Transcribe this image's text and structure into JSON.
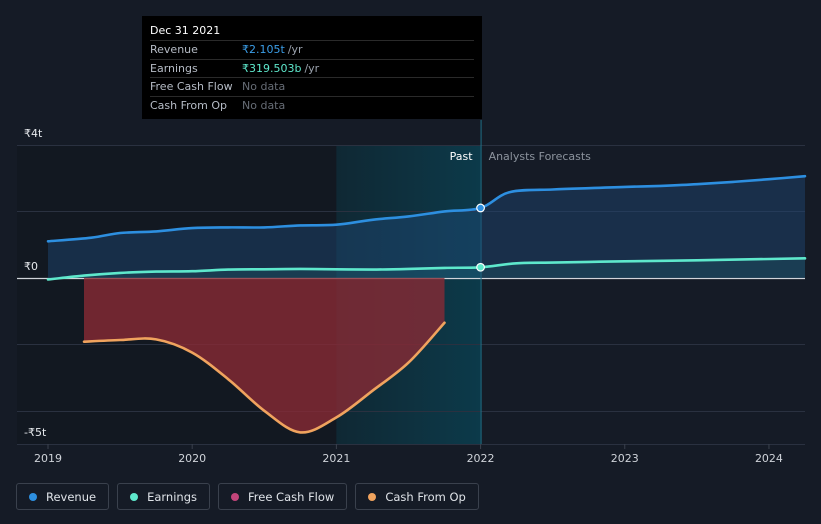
{
  "tooltip": {
    "date": "Dec 31 2021",
    "rows": [
      {
        "label": "Revenue",
        "value": "₹2.105t",
        "unit": "/yr"
      },
      {
        "label": "Earnings",
        "value": "₹319.503b",
        "unit": "/yr"
      },
      {
        "label": "Free Cash Flow",
        "value": "No data"
      },
      {
        "label": "Cash From Op",
        "value": "No data"
      }
    ]
  },
  "legend": [
    {
      "label": "Revenue",
      "color": "#2d8fe0"
    },
    {
      "label": "Earnings",
      "color": "#5ee8cc"
    },
    {
      "label": "Free Cash Flow",
      "color": "#c2457a"
    },
    {
      "label": "Cash From Op",
      "color": "#f0a35e"
    }
  ],
  "chart_data": {
    "type": "line",
    "ylim": [
      -5,
      4
    ],
    "x_tick_labels": [
      "2019",
      "2020",
      "2021",
      "2022",
      "2023",
      "2024"
    ],
    "y_tick_labels": [
      {
        "value": 4,
        "label": "₹4t"
      },
      {
        "value": 0,
        "label": "₹0"
      },
      {
        "value": -5,
        "label": "-₹5t"
      }
    ],
    "past_label": "Past",
    "forecast_label": "Analysts Forecasts",
    "divider_x": 2022.0,
    "highlight_range": [
      2021.0,
      2022.0
    ],
    "series": [
      {
        "name": "Revenue",
        "color": "#2d8fe0",
        "fill": true,
        "points": [
          [
            2019.0,
            1.1
          ],
          [
            2019.3,
            1.21
          ],
          [
            2019.5,
            1.35
          ],
          [
            2019.75,
            1.4
          ],
          [
            2020.0,
            1.5
          ],
          [
            2020.25,
            1.52
          ],
          [
            2020.5,
            1.52
          ],
          [
            2020.75,
            1.58
          ],
          [
            2021.0,
            1.6
          ],
          [
            2021.25,
            1.75
          ],
          [
            2021.5,
            1.85
          ],
          [
            2021.75,
            2.0
          ],
          [
            2022.0,
            2.105
          ],
          [
            2022.2,
            2.58
          ],
          [
            2022.5,
            2.66
          ],
          [
            2022.75,
            2.7
          ],
          [
            2023.0,
            2.74
          ],
          [
            2023.25,
            2.77
          ],
          [
            2023.5,
            2.82
          ],
          [
            2023.75,
            2.89
          ],
          [
            2024.0,
            2.97
          ],
          [
            2024.25,
            3.06
          ]
        ]
      },
      {
        "name": "Earnings",
        "color": "#5ee8cc",
        "fill": true,
        "points": [
          [
            2019.0,
            -0.05
          ],
          [
            2019.25,
            0.07
          ],
          [
            2019.5,
            0.15
          ],
          [
            2019.75,
            0.19
          ],
          [
            2020.0,
            0.2
          ],
          [
            2020.25,
            0.25
          ],
          [
            2020.5,
            0.26
          ],
          [
            2020.75,
            0.27
          ],
          [
            2021.0,
            0.26
          ],
          [
            2021.25,
            0.25
          ],
          [
            2021.5,
            0.27
          ],
          [
            2021.75,
            0.3
          ],
          [
            2022.0,
            0.3195
          ],
          [
            2022.25,
            0.44
          ],
          [
            2022.5,
            0.46
          ],
          [
            2022.75,
            0.48
          ],
          [
            2023.0,
            0.5
          ],
          [
            2023.5,
            0.53
          ],
          [
            2024.0,
            0.57
          ],
          [
            2024.25,
            0.59
          ]
        ]
      },
      {
        "name": "Free Cash Flow",
        "color": "#c2457a",
        "fill_only": true,
        "points": [
          [
            2019.25,
            -1.92
          ],
          [
            2019.5,
            -1.87
          ],
          [
            2019.75,
            -1.85
          ],
          [
            2020.0,
            -2.25
          ],
          [
            2020.25,
            -3.05
          ],
          [
            2020.5,
            -4.0
          ],
          [
            2020.75,
            -4.65
          ],
          [
            2021.0,
            -4.2
          ],
          [
            2021.25,
            -3.4
          ],
          [
            2021.5,
            -2.55
          ],
          [
            2021.75,
            -1.35
          ]
        ]
      },
      {
        "name": "Cash From Op",
        "color": "#f0a35e",
        "points": [
          [
            2019.25,
            -1.92
          ],
          [
            2019.5,
            -1.87
          ],
          [
            2019.75,
            -1.85
          ],
          [
            2020.0,
            -2.25
          ],
          [
            2020.25,
            -3.05
          ],
          [
            2020.5,
            -4.0
          ],
          [
            2020.75,
            -4.65
          ],
          [
            2021.0,
            -4.2
          ],
          [
            2021.25,
            -3.4
          ],
          [
            2021.5,
            -2.55
          ],
          [
            2021.75,
            -1.35
          ]
        ]
      }
    ]
  }
}
